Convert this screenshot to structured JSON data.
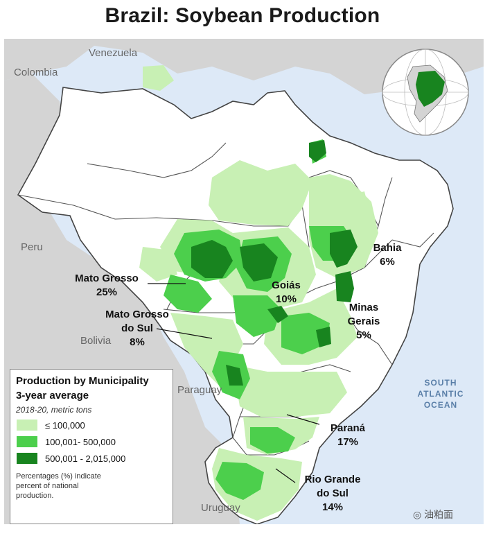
{
  "title": "Brazil: Soybean Production",
  "countries": {
    "venezuela": "Venezuela",
    "colombia": "Colombia",
    "peru": "Peru",
    "bolivia": "Bolivia",
    "paraguay": "Paraguay",
    "uruguay": "Uruguay"
  },
  "ocean": {
    "line1": "SOUTH",
    "line2": "ATLANTIC",
    "line3": "OCEAN"
  },
  "states": [
    {
      "name": "Mato Grosso",
      "pct": "25%"
    },
    {
      "name_line1": "Goiás",
      "pct": "10%"
    },
    {
      "name": "Bahia",
      "pct": "6%"
    },
    {
      "name_line1": "Minas",
      "name_line2": "Gerais",
      "pct": "5%"
    },
    {
      "name_line1": "Mato Grosso",
      "name_line2": "do Sul",
      "pct": "8%"
    },
    {
      "name": "Paraná",
      "pct": "17%"
    },
    {
      "name_line1": "Rio Grande",
      "name_line2": "do Sul",
      "pct": "14%"
    }
  ],
  "legend": {
    "title_line1": "Production by Municipality",
    "title_line2": "3-year average",
    "subtitle": "2018-20, metric tons",
    "items": [
      {
        "label": "≤ 100,000",
        "color": "#c8f0b4"
      },
      {
        "label": "100,001- 500,000",
        "color": "#4ccf4c"
      },
      {
        "label": "500,001 - 2,015,000",
        "color": "#18841f"
      }
    ],
    "note_line1": "Percentages (%) indicate",
    "note_line2": "percent of national",
    "note_line3": "production."
  },
  "watermark": "油粕面",
  "colors": {
    "water": "#dde9f7",
    "land_other": "#d4d4d4",
    "brazil": "#ffffff",
    "low": "#c8f0b4",
    "mid": "#4ccf4c",
    "high": "#18841f"
  }
}
